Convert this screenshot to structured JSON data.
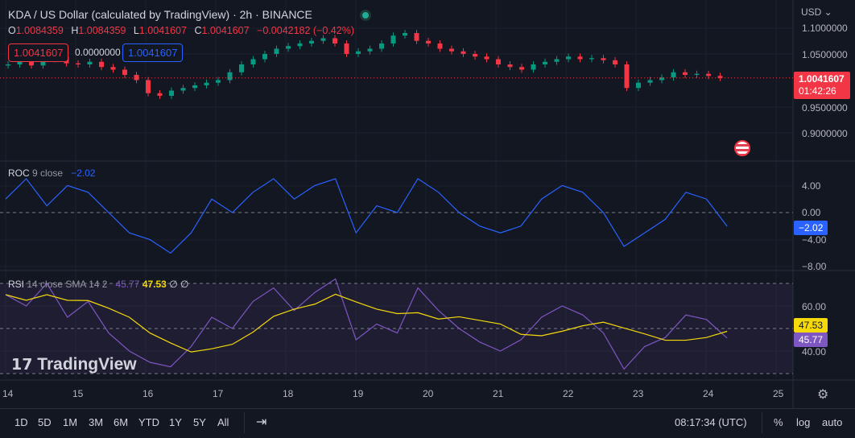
{
  "header": {
    "title": "KDA / US Dollar (calculated by TradingView) · 2h · BINANCE",
    "ohlc": {
      "o_label": "O",
      "o": "1.0084359",
      "h_label": "H",
      "h": "1.0084359",
      "l_label": "L",
      "l": "1.0041607",
      "c_label": "C",
      "c": "1.0041607",
      "change": "−0.0042182 (−0.42%)"
    },
    "sell_price": "1.0041607",
    "spread": "0.0000000",
    "buy_price": "1.0041607"
  },
  "price_axis": {
    "currency": "USD",
    "ticks": [
      "1.1000000",
      "1.0500000",
      "0.9500000",
      "0.9000000"
    ],
    "last_price": "1.0041607",
    "countdown": "01:42:26"
  },
  "roc": {
    "name": "ROC",
    "params": "9 close",
    "value": "−2.02",
    "ticks": [
      "4.00",
      "0.00",
      "−4.00",
      "−8.00"
    ]
  },
  "rsi": {
    "name": "RSI",
    "params": "14 close SMA 14 2",
    "value": "45.77",
    "sma": "47.53",
    "extra1": "∅",
    "extra2": "∅",
    "ticks": [
      "60.00",
      "40.00"
    ],
    "rsi_tag": "45.77",
    "sma_tag": "47.53"
  },
  "time_axis": [
    "14",
    "15",
    "16",
    "17",
    "18",
    "19",
    "20",
    "21",
    "22",
    "23",
    "24",
    "25"
  ],
  "logo": "TradingView",
  "bottom": {
    "ranges": [
      "1D",
      "5D",
      "1M",
      "3M",
      "6M",
      "YTD",
      "1Y",
      "5Y",
      "All"
    ],
    "clock": "08:17:34 (UTC)",
    "percent": "%",
    "log": "log",
    "auto": "auto"
  },
  "colors": {
    "up": "#089981",
    "down": "#f23645",
    "roc": "#2962ff",
    "rsi": "#7e57c2",
    "sma": "#f5d90a"
  },
  "chart_data": {
    "type": "candlestick",
    "x_start_day": 14,
    "interval_hours": 4,
    "closes": [
      1.03,
      1.035,
      1.028,
      1.04,
      1.045,
      1.032,
      1.03,
      1.035,
      1.025,
      1.02,
      1.01,
      1.0,
      0.975,
      0.97,
      0.98,
      0.985,
      0.99,
      0.995,
      1.0,
      1.015,
      1.03,
      1.04,
      1.05,
      1.06,
      1.065,
      1.07,
      1.075,
      1.08,
      1.07,
      1.05,
      1.055,
      1.06,
      1.07,
      1.085,
      1.09,
      1.075,
      1.07,
      1.06,
      1.055,
      1.05,
      1.045,
      1.04,
      1.03,
      1.025,
      1.02,
      1.03,
      1.035,
      1.04,
      1.045,
      1.04,
      1.042,
      1.038,
      1.03,
      0.985,
      0.995,
      1.0,
      1.005,
      1.015,
      1.01,
      1.012,
      1.008,
      1.004
    ],
    "roc": [
      2,
      5,
      1,
      4,
      3,
      0,
      -3,
      -4,
      -6,
      -3,
      2,
      0,
      3,
      5,
      2,
      4,
      5,
      -3,
      1,
      0,
      5,
      3,
      0,
      -2,
      -3,
      -2,
      2,
      4,
      3,
      0,
      -5,
      -3,
      -1,
      3,
      2,
      -2.02
    ],
    "rsi": [
      65,
      60,
      70,
      55,
      62,
      48,
      40,
      35,
      33,
      42,
      55,
      50,
      62,
      68,
      58,
      66,
      72,
      45,
      52,
      48,
      68,
      58,
      50,
      44,
      40,
      45,
      55,
      60,
      56,
      48,
      32,
      42,
      46,
      56,
      54,
      45.77
    ]
  }
}
